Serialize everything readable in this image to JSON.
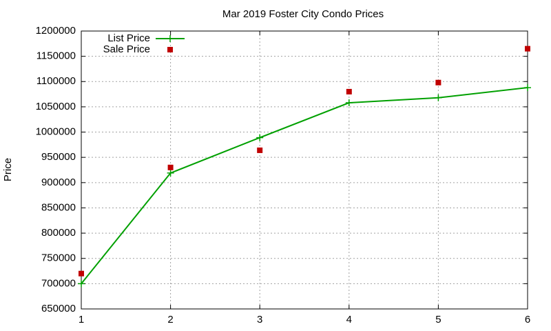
{
  "chart_data": {
    "type": "line",
    "title": "Mar 2019 Foster City Condo Prices",
    "y_label": "Price",
    "x": [
      1,
      2,
      3,
      4,
      5,
      6
    ],
    "series": [
      {
        "name": "List Price",
        "color": "#00a000",
        "style": "linespoints",
        "values": [
          700000,
          919000,
          989000,
          1058000,
          1068000,
          1088000
        ]
      },
      {
        "name": "Sale Price",
        "color": "#c00000",
        "style": "points",
        "values": [
          720000,
          930000,
          964000,
          1080000,
          1098000,
          1165000
        ]
      }
    ],
    "xlim": [
      1,
      6
    ],
    "xticks": [
      1,
      2,
      3,
      4,
      5,
      6
    ],
    "ylim": [
      650000,
      1200000
    ],
    "yticks": [
      650000,
      700000,
      750000,
      800000,
      850000,
      900000,
      950000,
      1000000,
      1050000,
      1100000,
      1150000,
      1200000
    ],
    "grid": true,
    "legend": "top-left"
  }
}
